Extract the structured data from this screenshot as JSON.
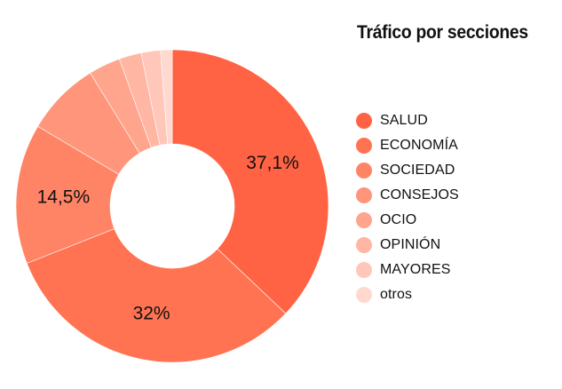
{
  "title": "Tráfico por secciones",
  "chart_data": {
    "type": "pie",
    "variant": "donut",
    "title": "Tráfico por secciones",
    "categories": [
      "SALUD",
      "ECONOMÍA",
      "SOCIEDAD",
      "CONSEJOS",
      "OCIO",
      "OPINIÓN",
      "MAYORES",
      "otros"
    ],
    "values": [
      37.1,
      32.0,
      14.5,
      7.7,
      3.3,
      2.3,
      2.0,
      1.2
    ],
    "data_labels": [
      "37,1%",
      "32%",
      "14,5%",
      "",
      "",
      "",
      "",
      ""
    ],
    "colors": [
      "#FF6344",
      "#FF7352",
      "#FF8466",
      "#FF957A",
      "#FFA58E",
      "#FFB6A3",
      "#FFC7B9",
      "#FFD9CF"
    ],
    "legend_position": "right",
    "start_angle": "top, clockwise"
  },
  "legend": {
    "items": [
      {
        "label": "SALUD",
        "color": "#FF6344"
      },
      {
        "label": "ECONOMÍA",
        "color": "#FF7352"
      },
      {
        "label": "SOCIEDAD",
        "color": "#FF8466"
      },
      {
        "label": "CONSEJOS",
        "color": "#FF957A"
      },
      {
        "label": "OCIO",
        "color": "#FFA58E"
      },
      {
        "label": "OPINIÓN",
        "color": "#FFB6A3"
      },
      {
        "label": "MAYORES",
        "color": "#FFC7B9"
      },
      {
        "label": "otros",
        "color": "#FFD9CF"
      }
    ]
  }
}
